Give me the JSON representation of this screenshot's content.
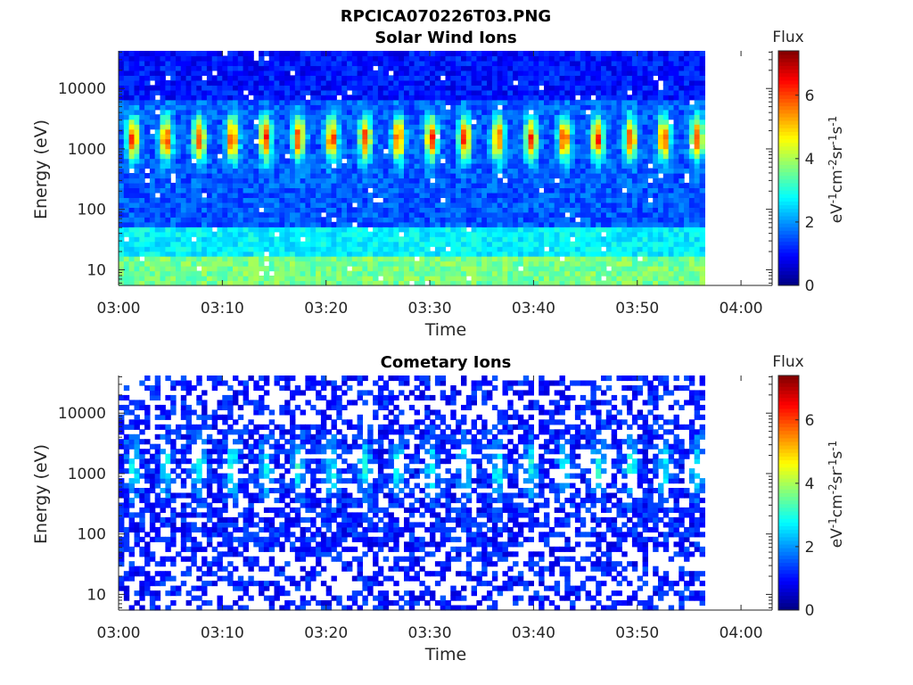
{
  "figure_title": "RPCICA070226T03.PNG",
  "chart_data": [
    {
      "type": "heatmap",
      "title": "Solar Wind Ions",
      "xlabel": "Time",
      "ylabel": "Energy (eV)",
      "y_scale": "log",
      "xlim_minutes": [
        0,
        63
      ],
      "ylim": [
        5.5,
        42000
      ],
      "x_ticks": [
        "03:00",
        "03:10",
        "03:20",
        "03:30",
        "03:40",
        "03:50",
        "04:00"
      ],
      "y_ticks": [
        "10",
        "100",
        "1000",
        "10000"
      ],
      "data_end_minute": 56.5,
      "peak_energy_ev": 1500,
      "pulse_period_minutes": 3.2,
      "colorbar": {
        "title": "Flux",
        "unit_label": "eV-1cm-2sr-1s-1",
        "range": [
          0,
          7.4
        ],
        "ticks": [
          "0",
          "2",
          "4",
          "6"
        ],
        "colormap": "jet"
      }
    },
    {
      "type": "heatmap",
      "title": "Cometary Ions",
      "xlabel": "Time",
      "ylabel": "Energy (eV)",
      "y_scale": "log",
      "xlim_minutes": [
        0,
        63
      ],
      "ylim": [
        5.5,
        42000
      ],
      "x_ticks": [
        "03:00",
        "03:10",
        "03:20",
        "03:30",
        "03:40",
        "03:50",
        "04:00"
      ],
      "y_ticks": [
        "10",
        "100",
        "1000",
        "10000"
      ],
      "data_end_minute": 56.5,
      "peak_energy_ev": 1500,
      "pulse_period_minutes": 3.2,
      "colorbar": {
        "title": "Flux",
        "unit_label": "eV-1cm-2sr-1s-1",
        "range": [
          0,
          7.4
        ],
        "ticks": [
          "0",
          "2",
          "4",
          "6"
        ],
        "colormap": "jet"
      }
    }
  ]
}
